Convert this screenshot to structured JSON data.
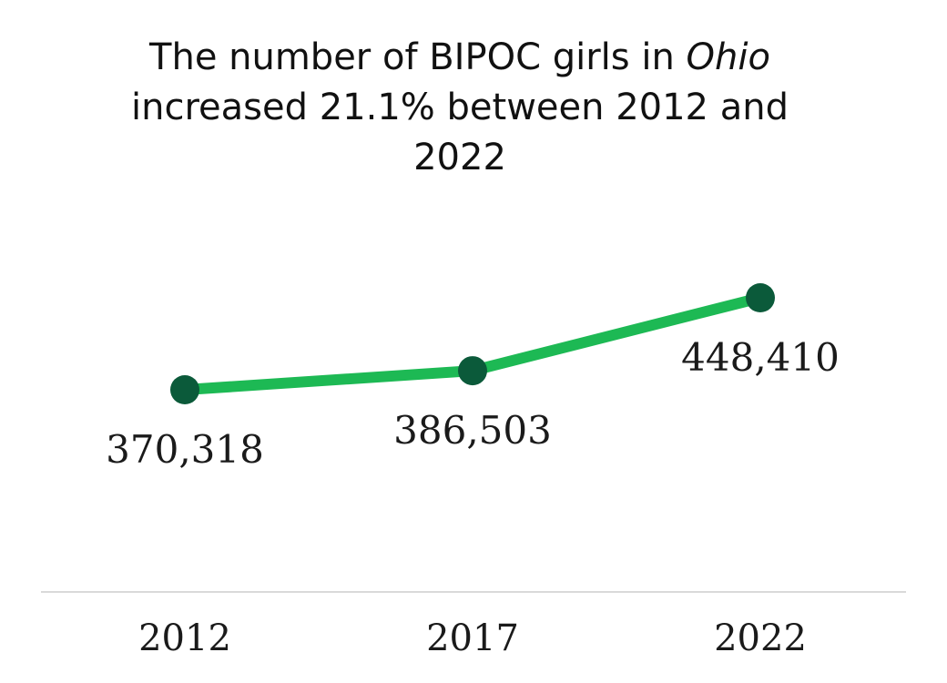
{
  "chart_data": {
    "type": "line",
    "title_parts": [
      "The number of BIPOC girls in ",
      "Ohio",
      " increased 21.1% between 2012 and 2022"
    ],
    "categories": [
      "2012",
      "2017",
      "2022"
    ],
    "series": [
      {
        "values": [
          370318,
          386503,
          448410
        ],
        "labels": [
          "370,318",
          "386,503",
          "448,410"
        ]
      }
    ],
    "xlabel": "",
    "ylabel": "",
    "ylim": [
      280000,
      480000
    ],
    "grid": false,
    "legend": "none",
    "colors": {
      "line": "#1db954",
      "marker": "#0b5a3a",
      "axis": "#d9d9d9",
      "text": "#111111"
    }
  }
}
